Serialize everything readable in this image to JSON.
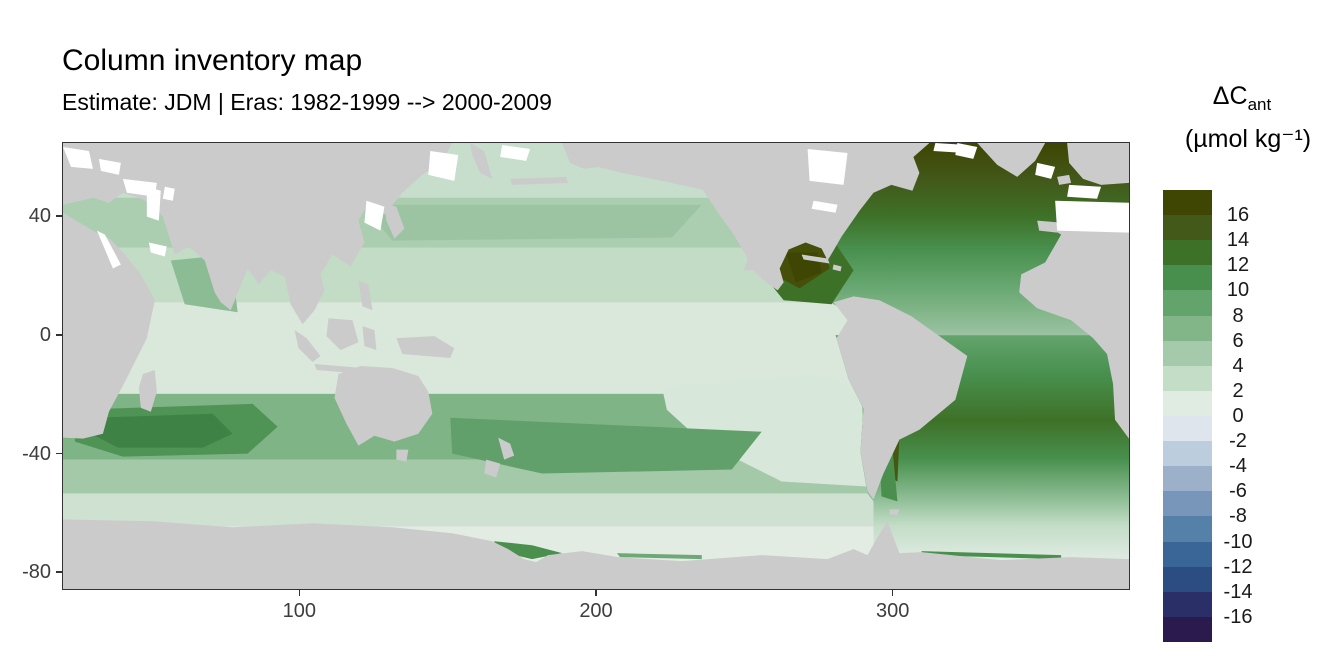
{
  "header": {
    "title": "Column inventory map",
    "subtitle": "Estimate: JDM  | Eras: 1982-1999 --> 2000-2009"
  },
  "legend": {
    "title_main": "ΔC",
    "title_sub": "ant",
    "units": "(µmol kg⁻¹)",
    "tick_labels": [
      "16",
      "14",
      "12",
      "10",
      "8",
      "6",
      "4",
      "2",
      "0",
      "-2",
      "-4",
      "-6",
      "-8",
      "-10",
      "-12",
      "-14",
      "-16"
    ],
    "band_colors": [
      "#3f4502",
      "#42591a",
      "#3e7128",
      "#488f4d",
      "#63a46c",
      "#82b689",
      "#a5caab",
      "#c3ddc7",
      "#e0ebe2",
      "#dee5ed",
      "#bccddd",
      "#9cb0c9",
      "#7896b9",
      "#5580a7",
      "#396696",
      "#2b4d81",
      "#2a3067",
      "#2b1a4d"
    ]
  },
  "axes": {
    "x_ticks": [
      {
        "value": 100,
        "label": "100"
      },
      {
        "value": 200,
        "label": "200"
      },
      {
        "value": 300,
        "label": "300"
      }
    ],
    "y_ticks": [
      {
        "value": 40,
        "label": "40"
      },
      {
        "value": 0,
        "label": "0"
      },
      {
        "value": -40,
        "label": "-40"
      },
      {
        "value": -80,
        "label": "-80"
      }
    ]
  },
  "chart_data": {
    "type": "heatmap",
    "title": "Column inventory map",
    "subtitle": "Estimate: JDM  | Eras: 1982-1999 --> 2000-2009",
    "estimate": "JDM",
    "era_from": "1982-1999",
    "era_to": "2000-2009",
    "variable": "ΔCant",
    "units": "µmol kg⁻¹",
    "projection": "longitude 20–380 (wrapped at 20°E), latitude -86 to 65, equal-aspect raster map",
    "xlabel": "",
    "ylabel": "",
    "x_range": [
      20,
      380
    ],
    "y_range": [
      -86,
      65
    ],
    "x_ticks": [
      100,
      200,
      300
    ],
    "y_ticks": [
      40,
      0,
      -40,
      -80
    ],
    "colorbar": {
      "tick_values": [
        16,
        14,
        12,
        10,
        8,
        6,
        4,
        2,
        0,
        -2,
        -4,
        -6,
        -8,
        -10,
        -12,
        -14,
        -16
      ],
      "band_colors_top_to_bottom": [
        "#3f4502",
        "#42591a",
        "#3e7128",
        "#488f4d",
        "#63a46c",
        "#82b689",
        "#a5caab",
        "#c3ddc7",
        "#e0ebe2",
        "#dee5ed",
        "#bccddd",
        "#9cb0c9",
        "#7896b9",
        "#5580a7",
        "#396696",
        "#2b4d81",
        "#2a3067",
        "#2b1a4d"
      ],
      "positive_side": "green-olive",
      "negative_side": "blue-navy"
    },
    "land_color": "#cbcbcb",
    "missing_data_color": "#ffffff",
    "panel_border_color": "#333333",
    "regions_approx_values": [
      {
        "region": "North Atlantic subpolar (45-65N)",
        "value_umol_kg": "16 to >16"
      },
      {
        "region": "North Atlantic subtropical (20-45N)",
        "value_umol_kg": "10 to 16"
      },
      {
        "region": "Gulf of Mexico / Caribbean",
        "value_umol_kg": "12 to >16"
      },
      {
        "region": "Equatorial Atlantic",
        "value_umol_kg": "6 to 10"
      },
      {
        "region": "South Atlantic subtropical gyre (10-45S)",
        "value_umol_kg": "10 to 14"
      },
      {
        "region": "North Pacific subtropical band (25-40N)",
        "value_umol_kg": "4 to 7"
      },
      {
        "region": "Equatorial and North Pacific",
        "value_umol_kg": "1 to 4"
      },
      {
        "region": "Southeast Pacific off Chile",
        "value_umol_kg": "0 to 3"
      },
      {
        "region": "Southern mid-latitude band (30-50S, all basins)",
        "value_umol_kg": "6 to 12"
      },
      {
        "region": "Southwest Indian Ocean (30-45S)",
        "value_umol_kg": "8 to 12"
      },
      {
        "region": "Arabian Sea",
        "value_umol_kg": "5 to 7"
      },
      {
        "region": "Southern Ocean near Antarctica (55-70S)",
        "value_umol_kg": "0 to 4"
      }
    ],
    "note": "Only positive (green) values appear on the map; negative (blue) legend bands are unused. Gray = land, white = no data."
  }
}
